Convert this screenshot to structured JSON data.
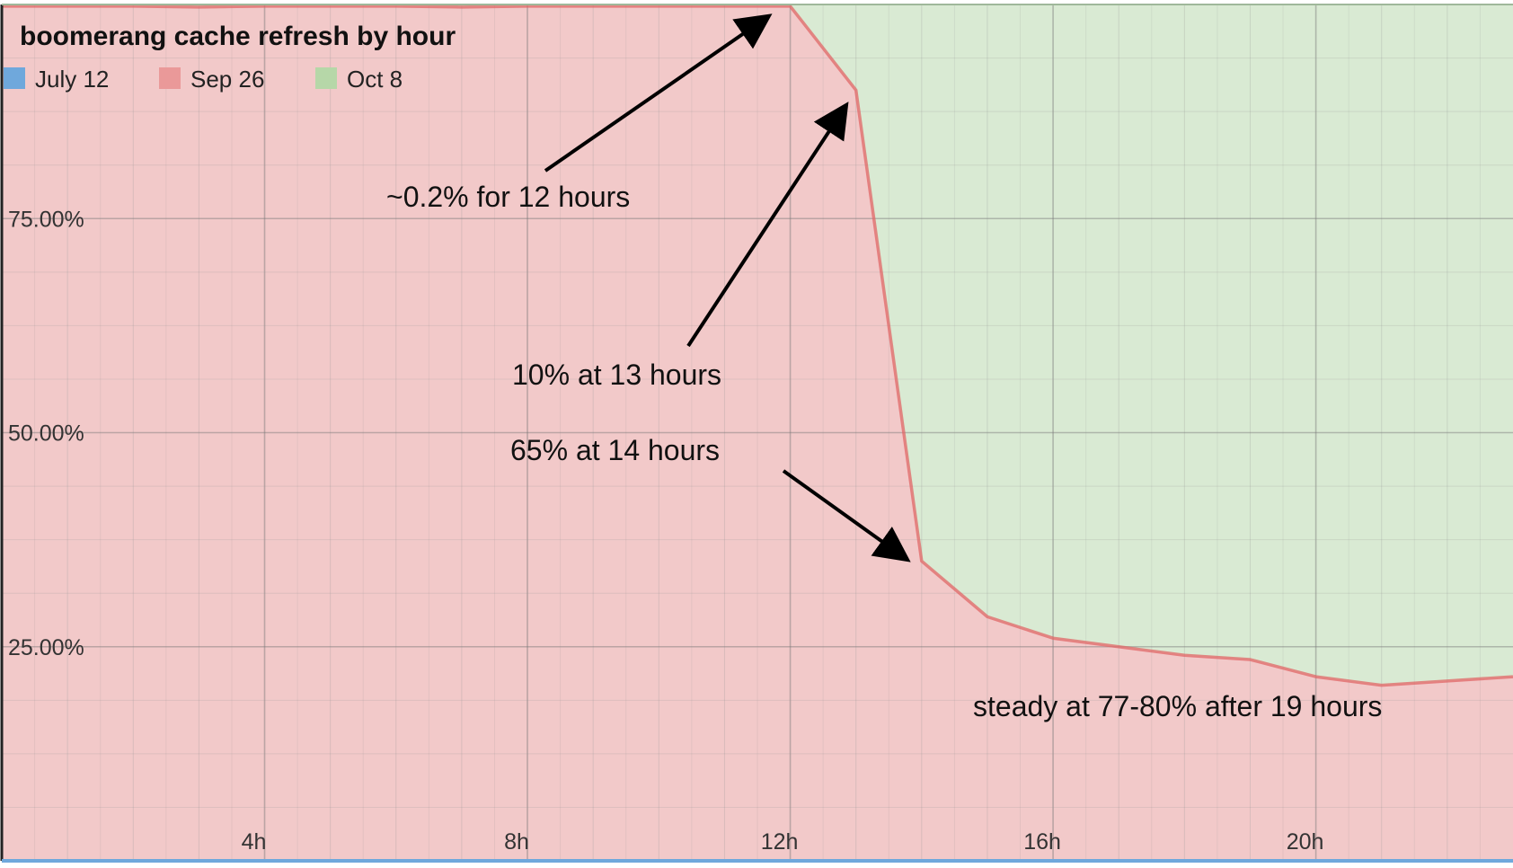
{
  "chart_data": {
    "type": "area",
    "stacked": true,
    "percent_stacked": true,
    "title": "boomerang cache refresh by hour",
    "legend_position": "top-left",
    "legend": [
      {
        "name": "July 12",
        "color": "#6fa8dc"
      },
      {
        "name": "Sep 26",
        "color": "#ea9999"
      },
      {
        "name": "Oct 8",
        "color": "#b6d7a8"
      }
    ],
    "x_ticks": [
      {
        "value": 4,
        "label": "4h"
      },
      {
        "value": 8,
        "label": "8h"
      },
      {
        "value": 12,
        "label": "12h"
      },
      {
        "value": 16,
        "label": "16h"
      },
      {
        "value": 20,
        "label": "20h"
      }
    ],
    "y_ticks": [
      {
        "value": 25,
        "label": "25.00%"
      },
      {
        "value": 50,
        "label": "50.00%"
      },
      {
        "value": 75,
        "label": "75.00%"
      }
    ],
    "xlim": [
      0,
      23
    ],
    "ylim": [
      0,
      100
    ],
    "grid": true,
    "x": [
      0,
      1,
      2,
      3,
      4,
      5,
      6,
      7,
      8,
      9,
      10,
      11,
      12,
      13,
      14,
      15,
      16,
      17,
      18,
      19,
      20,
      21,
      22,
      23
    ],
    "series": [
      {
        "name": "July 12",
        "values": [
          0,
          0,
          0,
          0,
          0,
          0,
          0,
          0,
          0,
          0,
          0,
          0,
          0,
          0,
          0,
          0,
          0,
          0,
          0,
          0,
          0,
          0,
          0,
          0
        ]
      },
      {
        "name": "Sep 26",
        "values": [
          99.8,
          99.8,
          99.8,
          99.7,
          99.8,
          99.8,
          99.8,
          99.7,
          99.8,
          99.8,
          99.8,
          99.8,
          99.8,
          90,
          35,
          28.5,
          26,
          25,
          24,
          23.5,
          21.5,
          20.5,
          21,
          21.5
        ]
      },
      {
        "name": "Oct 8",
        "values": [
          0.2,
          0.2,
          0.2,
          0.3,
          0.2,
          0.2,
          0.2,
          0.3,
          0.2,
          0.2,
          0.2,
          0.2,
          0.2,
          10,
          65,
          71.5,
          74,
          75,
          76,
          76.5,
          78.5,
          79.5,
          79,
          78.5
        ]
      }
    ],
    "annotations": [
      {
        "text": "~0.2% for 12 hours",
        "target_x": 11.8,
        "target_y": 99.5
      },
      {
        "text": "10% at 13 hours",
        "target_x": 12.8,
        "target_y": 89
      },
      {
        "text": "65% at 14 hours",
        "target_x": 13.8,
        "target_y": 36
      },
      {
        "text": "steady at 77-80% after 19 hours"
      }
    ]
  }
}
